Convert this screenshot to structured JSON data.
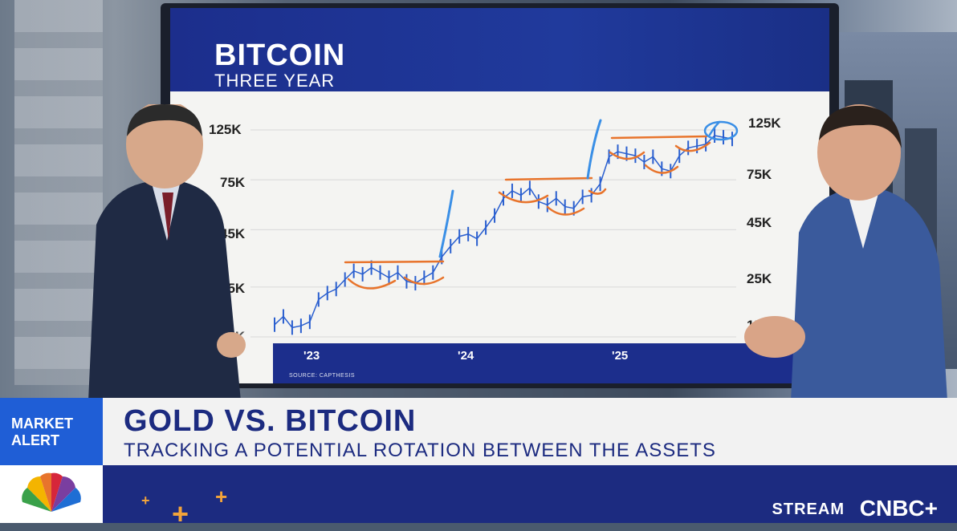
{
  "board": {
    "title": "BITCOIN",
    "subtitle": "THREE YEAR",
    "source": "SOURCE: CAPTHESIS",
    "y_left": [
      "125K",
      "75K",
      "45K",
      "25K",
      "15K"
    ],
    "y_right": [
      "125K",
      "75K",
      "45K",
      "25K",
      "15K"
    ],
    "x_labels": [
      "'23",
      "'24",
      "'25"
    ]
  },
  "chart_data": {
    "type": "line",
    "y_scale": "log",
    "x_labels": [
      "'23",
      "'24",
      "'25"
    ],
    "y_ticks": [
      15000,
      25000,
      45000,
      75000,
      125000
    ],
    "series": [
      {
        "values": [
          17000,
          18500,
          16500,
          16800,
          17500,
          22000,
          23500,
          24500,
          27000,
          29500,
          28500,
          30500,
          29000,
          27500,
          29000,
          26500,
          26000,
          27500,
          29000,
          34000,
          38000,
          42000,
          43000,
          41000,
          46000,
          52000,
          62000,
          67000,
          64000,
          69000,
          60000,
          58000,
          62000,
          57000,
          56000,
          63000,
          64000,
          72000,
          95000,
          100000,
          98000,
          96000,
          90000,
          95000,
          84000,
          82000,
          96000,
          104000,
          106000,
          108000,
          118000,
          116000,
          114000
        ]
      }
    ],
    "colors": {
      "price": "#2a5fcf",
      "annotation": "#e8742c",
      "highlight": "#3a8fe6"
    }
  },
  "ticker": {
    "badge": "MARKET ALERT",
    "headline": "GOLD VS. BITCOIN",
    "subline": "TRACKING A POTENTIAL ROTATION BETWEEN THE ASSETS",
    "stream": "STREAM",
    "brand": "CNBC+"
  }
}
